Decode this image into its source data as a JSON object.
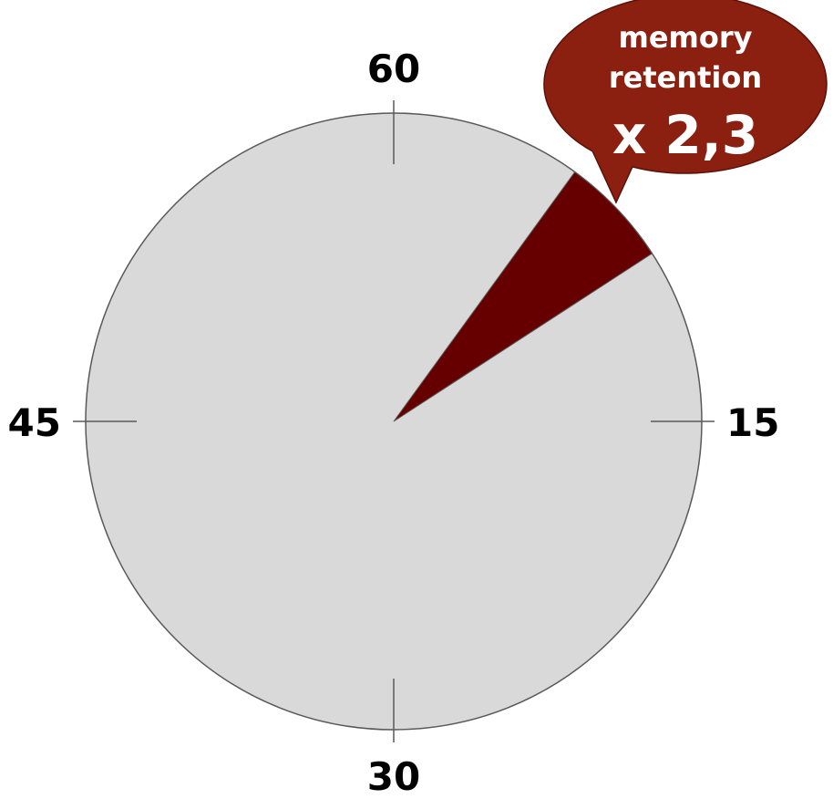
{
  "chart_data": {
    "type": "pie",
    "ticks": [
      {
        "label": "60",
        "minute": 0
      },
      {
        "label": "15",
        "minute": 15
      },
      {
        "label": "30",
        "minute": 30
      },
      {
        "label": "45",
        "minute": 45
      }
    ],
    "highlight": {
      "start_minute": 6,
      "end_minute": 9.5
    },
    "callout": {
      "line1": "memory",
      "line2": "retention",
      "line3": "x 2,3"
    },
    "colors": {
      "face": "#d9d9d9",
      "face_stroke": "#595959",
      "wedge": "#660000",
      "callout": "#8b2010",
      "callout_stroke": "#5a1208",
      "tick": "#595959",
      "label": "#000000"
    }
  }
}
